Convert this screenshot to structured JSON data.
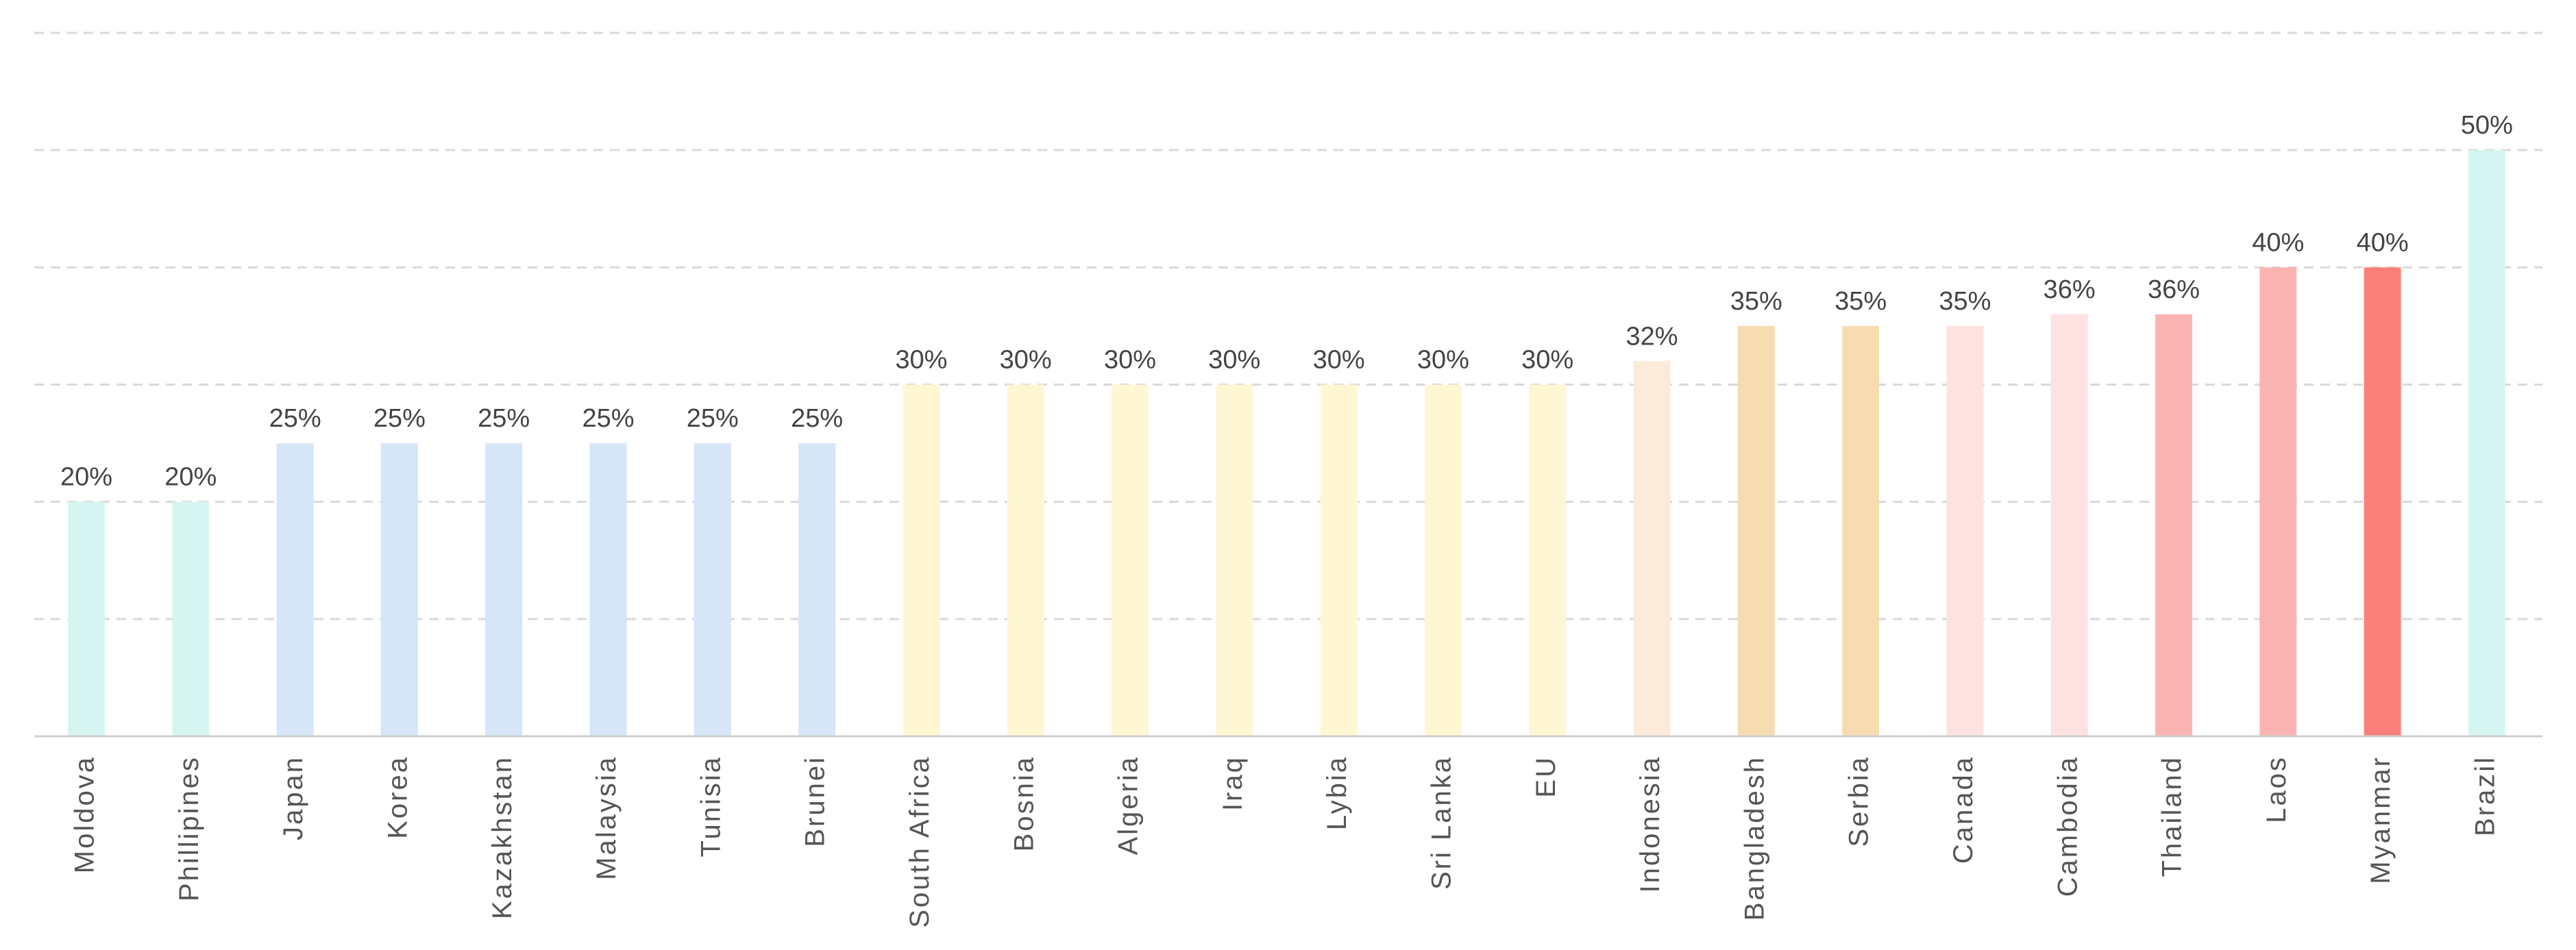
{
  "chart_data": {
    "type": "bar",
    "categories": [
      "Moldova",
      "Phillipines",
      "Japan",
      "Korea",
      "Kazakhstan",
      "Malaysia",
      "Tunisia",
      "Brunei",
      "South Africa",
      "Bosnia",
      "Algeria",
      "Iraq",
      "Lybia",
      "Sri Lanka",
      "EU",
      "Indonesia",
      "Bangladesh",
      "Serbia",
      "Canada",
      "Cambodia",
      "Thailand",
      "Laos",
      "Myanmar",
      "Brazil"
    ],
    "values": [
      20,
      20,
      25,
      25,
      25,
      25,
      25,
      25,
      30,
      30,
      30,
      30,
      30,
      30,
      30,
      32,
      35,
      35,
      35,
      36,
      36,
      40,
      40,
      50
    ],
    "value_labels": [
      "20%",
      "20%",
      "25%",
      "25%",
      "25%",
      "25%",
      "25%",
      "25%",
      "30%",
      "30%",
      "30%",
      "30%",
      "30%",
      "30%",
      "30%",
      "32%",
      "35%",
      "35%",
      "35%",
      "36%",
      "36%",
      "40%",
      "40%",
      "50%"
    ],
    "colors": [
      "#d5f5f1",
      "#d5f5f1",
      "#d6e5f7",
      "#d6e5f7",
      "#d6e5f7",
      "#d6e5f7",
      "#d6e5f7",
      "#d6e5f7",
      "#fff7d4",
      "#fff7d4",
      "#fff7d4",
      "#fff7d4",
      "#fff7d4",
      "#fff7d4",
      "#fff7d4",
      "#fcebd9",
      "#f7dcb2",
      "#f7dcb2",
      "#fee2e1",
      "#fee2e1",
      "#fcb4b2",
      "#fcb4b2",
      "#fb807c",
      "#d5f5f1"
    ],
    "title": "",
    "xlabel": "",
    "ylabel": "",
    "ylim": [
      0,
      60
    ],
    "grid": true,
    "grid_step": 10,
    "legend": "none"
  }
}
